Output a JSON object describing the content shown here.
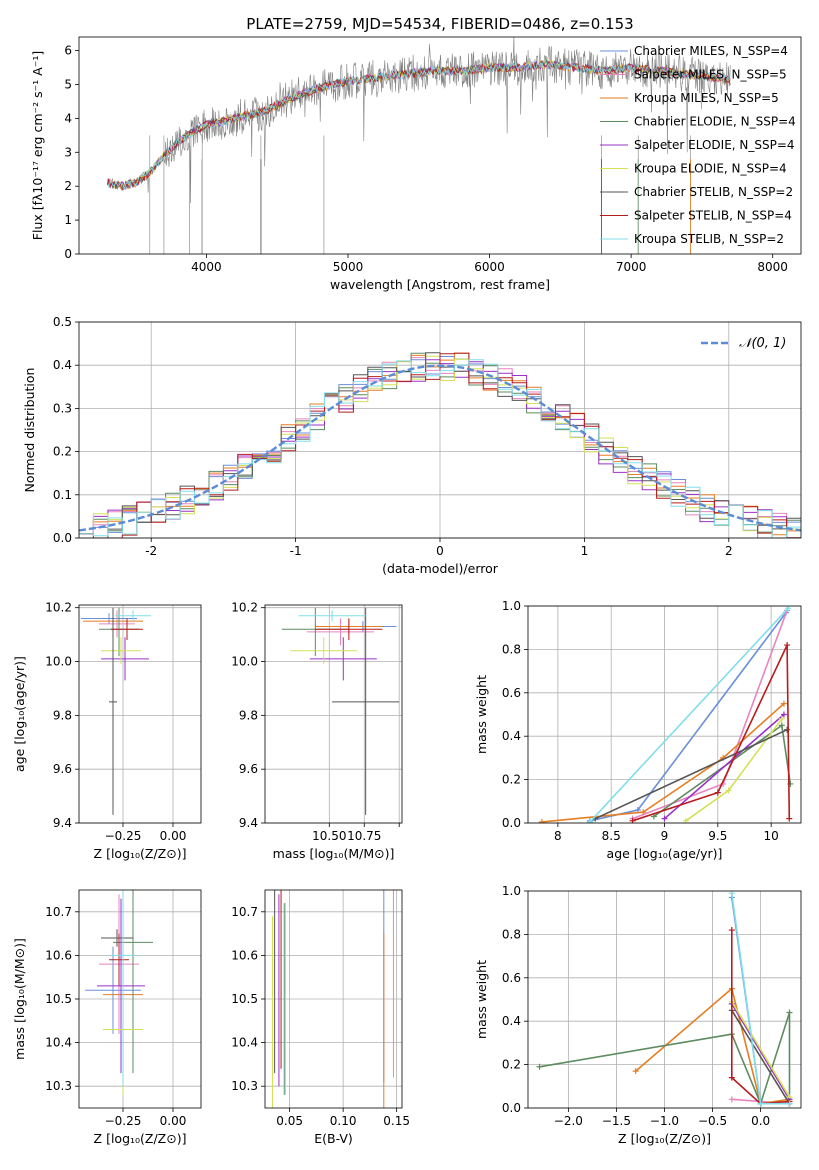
{
  "chart_data": [
    {
      "id": "spectrum",
      "type": "line",
      "title": "PLATE=2759, MJD=54534, FIBERID=0486, z=0.153",
      "xlabel": "wavelength [Angstrom, rest frame]",
      "ylabel": "Flux [fλ10⁻¹⁷ erg cm⁻² s⁻¹ A⁻¹]",
      "xlim": [
        3100,
        8200
      ],
      "ylim": [
        0,
        6.4
      ],
      "xticks": [
        4000,
        5000,
        6000,
        7000,
        8000
      ],
      "yticks": [
        0,
        1,
        2,
        3,
        4,
        5,
        6
      ],
      "data_x": [
        3300,
        3400,
        3500,
        3600,
        3700,
        3800,
        3900,
        4000,
        4200,
        4400,
        4600,
        4800,
        5000,
        5200,
        5400,
        5600,
        5800,
        6000,
        6200,
        6400,
        6600,
        6800,
        7000,
        7200,
        7400,
        7600,
        7700
      ],
      "data_y": [
        2.1,
        2.0,
        2.1,
        2.4,
        2.9,
        3.3,
        3.6,
        3.8,
        4.0,
        4.2,
        4.6,
        4.9,
        5.1,
        5.2,
        5.3,
        5.4,
        5.4,
        5.5,
        5.5,
        5.6,
        5.5,
        5.4,
        5.5,
        5.4,
        5.3,
        5.2,
        5.1
      ],
      "legend_position": "upper-right",
      "legend": [
        {
          "label": "Chabrier MILES, N_SSP=4",
          "color": "#6a8fdc"
        },
        {
          "label": "Salpeter MILES, N_SSP=5",
          "color": "#e884bf"
        },
        {
          "label": "Kroupa MILES, N_SSP=5",
          "color": "#e67e22"
        },
        {
          "label": "Chabrier ELODIE, N_SSP=4",
          "color": "#5e8c61"
        },
        {
          "label": "Salpeter ELODIE, N_SSP=4",
          "color": "#9b30c9"
        },
        {
          "label": "Kroupa ELODIE, N_SSP=4",
          "color": "#d4e157"
        },
        {
          "label": "Chabrier STELIB, N_SSP=2",
          "color": "#555555"
        },
        {
          "label": "Salpeter STELIB, N_SSP=4",
          "color": "#b71c1c"
        },
        {
          "label": "Kroupa STELIB, N_SSP=2",
          "color": "#80deea"
        }
      ],
      "grid": false
    },
    {
      "id": "residuals",
      "type": "line",
      "xlabel": "(data-model)/error",
      "ylabel": "Normed distribution",
      "xlim": [
        -2.5,
        2.5
      ],
      "ylim": [
        0,
        0.5
      ],
      "xticks": [
        -2,
        -1,
        0,
        1,
        2
      ],
      "yticks": [
        0.0,
        0.1,
        0.2,
        0.3,
        0.4,
        0.5
      ],
      "bin_edges": [
        -2.5,
        -2.4,
        -2.3,
        -2.2,
        -2.1,
        -2.0,
        -1.9,
        -1.8,
        -1.7,
        -1.6,
        -1.5,
        -1.4,
        -1.3,
        -1.2,
        -1.1,
        -1.0,
        -0.9,
        -0.8,
        -0.7,
        -0.6,
        -0.5,
        -0.4,
        -0.3,
        -0.2,
        -0.1,
        0.0,
        0.1,
        0.2,
        0.3,
        0.4,
        0.5,
        0.6,
        0.7,
        0.8,
        0.9,
        1.0,
        1.1,
        1.2,
        1.3,
        1.4,
        1.5,
        1.6,
        1.7,
        1.8,
        1.9,
        2.0,
        2.1,
        2.2,
        2.3,
        2.4,
        2.5
      ],
      "reference_label": "𝒩(0, 1)",
      "grid": true,
      "legend_position": "upper-right"
    },
    {
      "id": "age_vs_Z",
      "type": "scatter",
      "xlabel": "Z [log₁₀(Z/Z⊙)]",
      "ylabel": "age  [log₁₀(age/yr)]",
      "xlim": [
        -0.47,
        0.14
      ],
      "ylim": [
        9.4,
        10.21
      ],
      "xticks": [
        -0.25,
        0.0
      ],
      "xtick_labels": [
        "−0.25",
        "0.00"
      ],
      "yticks": [
        9.4,
        9.6,
        9.8,
        10.0,
        10.2
      ],
      "ytick_labels": [
        "9.4",
        "9.6",
        "9.8",
        "10.0",
        "10.2"
      ],
      "grid": true
    },
    {
      "id": "age_vs_mass",
      "type": "scatter",
      "xlabel": "mass [log₁₀(M/M⊙)]",
      "xlim": [
        10.27,
        10.76
      ],
      "ylim": [
        9.4,
        10.21
      ],
      "xticks": [
        10.5,
        10.625,
        10.75
      ],
      "xtick_labels": [
        "10.50",
        "10.75"
      ],
      "yticks": [
        9.4,
        9.6,
        9.8,
        10.0,
        10.2
      ],
      "ytick_labels": [
        "9.4",
        "9.6",
        "9.8",
        "10.0",
        "10.2"
      ],
      "grid": true
    },
    {
      "id": "weight_vs_age",
      "type": "line",
      "xlabel": "age  [log₁₀(age/yr)]",
      "ylabel": "mass weight",
      "xlim": [
        7.72,
        10.28
      ],
      "ylim": [
        0,
        1.0
      ],
      "xticks": [
        8.0,
        8.5,
        9.0,
        9.5,
        10.0
      ],
      "yticks": [
        0.0,
        0.2,
        0.4,
        0.6,
        0.8,
        1.0
      ],
      "grid": true
    },
    {
      "id": "mass_vs_Z",
      "type": "scatter",
      "xlabel": "Z [log₁₀(Z/Z⊙)]",
      "ylabel": "mass [log₁₀(M/M⊙)]",
      "xlim": [
        -0.47,
        0.14
      ],
      "ylim": [
        10.25,
        10.75
      ],
      "xticks": [
        -0.25,
        0.0
      ],
      "xtick_labels": [
        "−0.25",
        "0.00"
      ],
      "yticks": [
        10.3,
        10.4,
        10.5,
        10.6,
        10.7
      ],
      "grid": true
    },
    {
      "id": "mass_vs_ebv",
      "type": "scatter",
      "xlabel": "E(B-V)",
      "xlim": [
        0.027,
        0.155
      ],
      "ylim": [
        10.25,
        10.75
      ],
      "xticks": [
        0.05,
        0.1,
        0.15
      ],
      "xtick_labels": [
        "0.05",
        "0.10",
        "0.15"
      ],
      "yticks": [
        10.3,
        10.4,
        10.5,
        10.6,
        10.7
      ],
      "grid": true
    },
    {
      "id": "weight_vs_Z",
      "type": "line",
      "xlabel": "Z [log₁₀(Z/Z⊙)]",
      "ylabel": "mass weight",
      "xlim": [
        -2.42,
        0.42
      ],
      "ylim": [
        0,
        1.0
      ],
      "xticks": [
        -2.0,
        -1.5,
        -1.0,
        -0.5,
        0.0
      ],
      "xtick_labels": [
        "−2.0",
        "−1.5",
        "−1.0",
        "−0.5",
        "0.0"
      ],
      "yticks": [
        0.0,
        0.2,
        0.4,
        0.6,
        0.8,
        1.0
      ],
      "grid": true
    }
  ]
}
